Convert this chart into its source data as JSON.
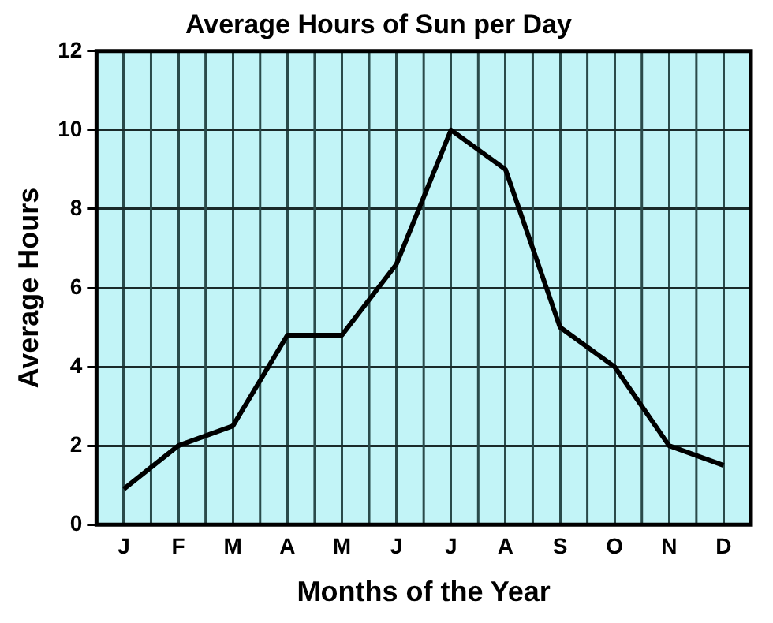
{
  "chart_data": {
    "type": "line",
    "title": "Average Hours of Sun per Day",
    "xlabel": "Months of the Year",
    "ylabel": "Average Hours",
    "categories": [
      "J",
      "F",
      "M",
      "A",
      "M",
      "J",
      "J",
      "A",
      "S",
      "O",
      "N",
      "D"
    ],
    "series": [
      {
        "color": "#000000",
        "values": [
          0.9,
          2,
          2.5,
          4.8,
          4.8,
          6.6,
          10,
          9.0,
          5.0,
          4,
          2,
          1.5
        ]
      }
    ],
    "ylim": [
      0,
      12
    ],
    "yticks": [
      0,
      2,
      4,
      6,
      8,
      10,
      12
    ],
    "grid": true,
    "legend": false,
    "marker": "none",
    "line_style": "solid"
  }
}
